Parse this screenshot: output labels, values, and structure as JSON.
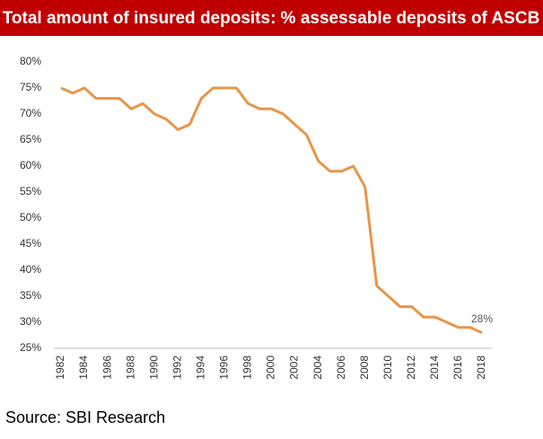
{
  "chart_data": {
    "type": "line",
    "title": "Total amount of insured deposits: % assessable deposits of ASCB",
    "source": "Source: SBI Research",
    "x": [
      1982,
      1983,
      1984,
      1985,
      1986,
      1987,
      1988,
      1989,
      1990,
      1991,
      1992,
      1993,
      1994,
      1995,
      1996,
      1997,
      1998,
      1999,
      2000,
      2001,
      2002,
      2003,
      2004,
      2005,
      2006,
      2007,
      2008,
      2009,
      2010,
      2011,
      2012,
      2013,
      2014,
      2015,
      2016,
      2017,
      2018
    ],
    "series": [
      {
        "color": "#e8954a",
        "values": [
          75,
          74,
          75,
          73,
          73,
          73,
          71,
          72,
          70,
          69,
          67,
          68,
          73,
          75,
          75,
          75,
          72,
          71,
          71,
          70,
          68,
          66,
          61,
          59,
          59,
          60,
          56,
          37,
          35,
          33,
          33,
          31,
          31,
          30,
          29,
          29,
          28
        ],
        "value_labels": [
          null,
          null,
          null,
          null,
          null,
          null,
          null,
          null,
          null,
          null,
          null,
          null,
          null,
          null,
          null,
          null,
          null,
          null,
          null,
          null,
          null,
          null,
          null,
          null,
          null,
          null,
          null,
          null,
          null,
          null,
          null,
          null,
          null,
          null,
          null,
          null,
          "28%"
        ]
      }
    ],
    "xlim": [
      1982,
      2018
    ],
    "xticks": [
      1982,
      1984,
      1986,
      1988,
      1990,
      1992,
      1994,
      1996,
      1998,
      2000,
      2002,
      2004,
      2006,
      2008,
      2010,
      2012,
      2014,
      2016,
      2018
    ],
    "ylim": [
      25,
      80
    ],
    "yticks": [
      {
        "value": 25,
        "label": "25%"
      },
      {
        "value": 30,
        "label": "30%"
      },
      {
        "value": 35,
        "label": "35%"
      },
      {
        "value": 40,
        "label": "40%"
      },
      {
        "value": 45,
        "label": "45%"
      },
      {
        "value": 50,
        "label": "50%"
      },
      {
        "value": 55,
        "label": "55%"
      },
      {
        "value": 60,
        "label": "60%"
      },
      {
        "value": 65,
        "label": "65%"
      },
      {
        "value": 70,
        "label": "70%"
      },
      {
        "value": 75,
        "label": "75%"
      },
      {
        "value": 80,
        "label": "80%"
      }
    ],
    "grid": false
  }
}
